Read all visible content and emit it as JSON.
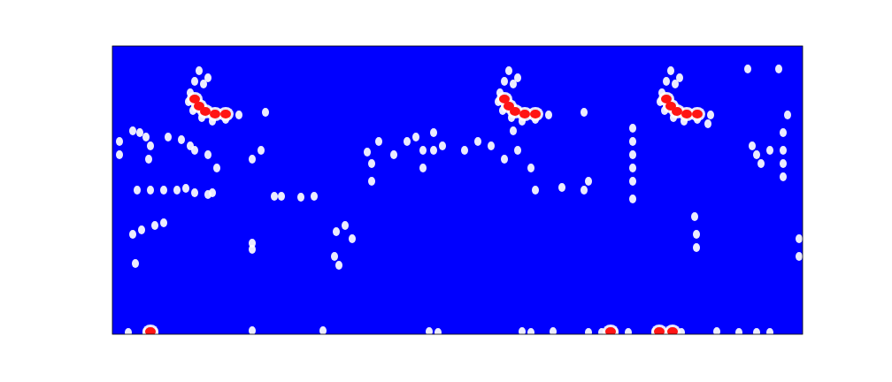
{
  "chart_data": {
    "type": "heatmap",
    "tick_labels": false,
    "xlim": [
      0,
      780
    ],
    "ylim": [
      0,
      326
    ],
    "color_range": [
      0,
      1
    ],
    "x": [
      93,
      103,
      88,
      86,
      91,
      101,
      113,
      128,
      143,
      98,
      108,
      93,
      98,
      105,
      116,
      128,
      443,
      453,
      438,
      436,
      441,
      451,
      463,
      478,
      493,
      448,
      458,
      443,
      448,
      455,
      466,
      478,
      626,
      636,
      621,
      619,
      624,
      634,
      646,
      661,
      676,
      631,
      641,
      626,
      631,
      638,
      649,
      661,
      8,
      8,
      23,
      31,
      38,
      43,
      41,
      63,
      78,
      88,
      93,
      118,
      108,
      158,
      168,
      173,
      28,
      43,
      58,
      73,
      83,
      93,
      108,
      113,
      183,
      191,
      213,
      228,
      23,
      33,
      48,
      58,
      26,
      158,
      158,
      253,
      263,
      271,
      251,
      256,
      288,
      293,
      293,
      301,
      318,
      333,
      343,
      351,
      351,
      363,
      373,
      398,
      413,
      428,
      443,
      458,
      473,
      478,
      508,
      533,
      538,
      533,
      453,
      363,
      588,
      588,
      588,
      588,
      588,
      588,
      658,
      660,
      660,
      723,
      728,
      733,
      743,
      758,
      758,
      758,
      758,
      763,
      753,
      776,
      776,
      718,
      673,
      18,
      38,
      48,
      158,
      238,
      358,
      368,
      463,
      473,
      498,
      538,
      553,
      568,
      583,
      613,
      628,
      643,
      683,
      708,
      728,
      743,
      43,
      563,
      618,
      633
    ],
    "y": [
      286,
      283,
      273,
      263,
      253,
      245,
      241,
      243,
      248,
      298,
      290,
      266,
      258,
      252,
      249,
      249,
      286,
      283,
      273,
      263,
      253,
      245,
      241,
      243,
      248,
      298,
      290,
      266,
      258,
      252,
      249,
      249,
      286,
      283,
      273,
      263,
      253,
      245,
      241,
      243,
      248,
      298,
      290,
      266,
      258,
      252,
      249,
      249,
      218,
      203,
      230,
      228,
      223,
      213,
      198,
      223,
      220,
      213,
      208,
      188,
      203,
      198,
      208,
      251,
      163,
      163,
      163,
      163,
      165,
      160,
      158,
      160,
      156,
      156,
      155,
      156,
      113,
      118,
      123,
      126,
      80,
      103,
      96,
      116,
      123,
      108,
      88,
      78,
      206,
      193,
      173,
      218,
      203,
      218,
      223,
      208,
      188,
      208,
      213,
      208,
      218,
      213,
      198,
      208,
      188,
      163,
      166,
      163,
      173,
      251,
      230,
      228,
      233,
      218,
      203,
      188,
      173,
      153,
      133,
      113,
      98,
      213,
      203,
      193,
      208,
      228,
      208,
      193,
      178,
      248,
      300,
      108,
      88,
      300,
      238,
      2,
      2,
      2,
      4,
      4,
      3,
      2,
      3,
      2,
      3,
      2,
      2,
      2,
      2,
      2,
      2,
      2,
      3,
      2,
      2,
      2,
      3,
      3,
      3,
      3
    ],
    "values": [
      0.5,
      0.5,
      0.5,
      0.5,
      0.5,
      0.5,
      0.5,
      0.5,
      0.5,
      0.5,
      0.5,
      1,
      1,
      1,
      1,
      1,
      0.5,
      0.5,
      0.5,
      0.5,
      0.5,
      0.5,
      0.5,
      0.5,
      0.5,
      0.5,
      0.5,
      1,
      1,
      1,
      1,
      1,
      0.5,
      0.5,
      0.5,
      0.5,
      0.5,
      0.5,
      0.5,
      0.5,
      0.5,
      0.5,
      0.5,
      1,
      1,
      1,
      1,
      1,
      0.5,
      0.5,
      0.5,
      0.5,
      0.5,
      0.5,
      0.5,
      0.5,
      0.5,
      0.5,
      0.5,
      0.5,
      0.5,
      0.5,
      0.5,
      0.5,
      0.5,
      0.5,
      0.5,
      0.5,
      0.5,
      0.5,
      0.5,
      0.5,
      0.5,
      0.5,
      0.5,
      0.5,
      0.5,
      0.5,
      0.5,
      0.5,
      0.5,
      0.5,
      0.5,
      0.5,
      0.5,
      0.5,
      0.5,
      0.5,
      0.5,
      0.5,
      0.5,
      0.5,
      0.5,
      0.5,
      0.5,
      0.5,
      0.5,
      0.5,
      0.5,
      0.5,
      0.5,
      0.5,
      0.5,
      0.5,
      0.5,
      0.5,
      0.5,
      0.5,
      0.5,
      0.5,
      0.5,
      0.5,
      0.5,
      0.5,
      0.5,
      0.5,
      0.5,
      0.5,
      0.5,
      0.5,
      0.5,
      0.5,
      0.5,
      0.5,
      0.5,
      0.5,
      0.5,
      0.5,
      0.5,
      0.5,
      0.5,
      0.5,
      0.5,
      0.5,
      0.5,
      0.5,
      0.5,
      0.5,
      0.5,
      0.5,
      0.5,
      0.5,
      0.5,
      0.5,
      0.5,
      0.5,
      0.5,
      0.5,
      0.5,
      0.5,
      0.5,
      0.5,
      0.5,
      0.5,
      0.5,
      0.5,
      1,
      1,
      1,
      1
    ]
  }
}
